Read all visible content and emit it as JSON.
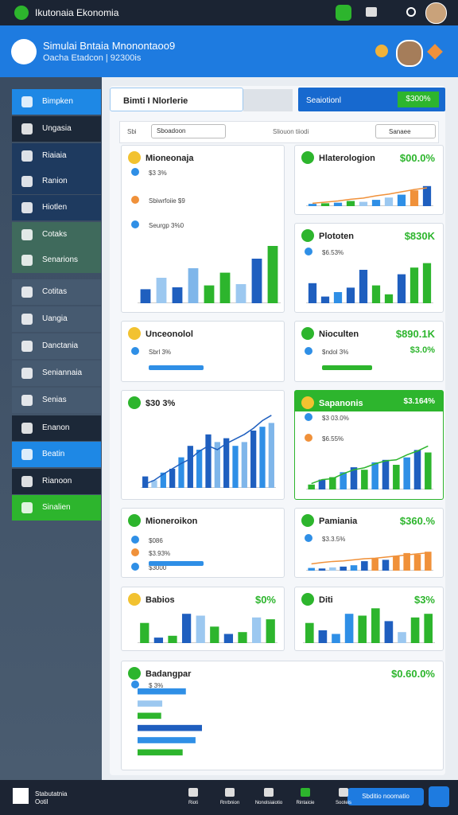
{
  "app": {
    "title": "Ikutonaia Ekonomia"
  },
  "header": {
    "title": "Simulai Bntaia  Mnonontaoo9",
    "subtitle": "Oacha  Etadcon  |  92300is"
  },
  "sidebar": {
    "items": [
      "Bimpken",
      "Ungasia",
      "Riaiaia",
      "Ranion",
      "Hiotlen",
      "Cotaks",
      "Senarions",
      "Cotitas",
      "Uangia",
      "Danctania",
      "Seniannaia",
      "Senias",
      "Enanon",
      "Beatin",
      "Rianoon",
      "Sinalien"
    ],
    "footer": {
      "title": "Stabutatnia",
      "subtitle": "Ootil"
    }
  },
  "toolbar": {
    "tab": "Bimti I Nlorlerie",
    "action": "Seaiotionl",
    "action_value": "$300%"
  },
  "filters": {
    "label": "Sbi",
    "select": "Sboadoon",
    "link": "Sliouon tiiodi",
    "button": "Sanaee"
  },
  "cards": [
    {
      "title": "Mioneonaja",
      "lines": [
        "$3 3%",
        "Sbiwrfoiie  $9",
        "Seurgp  3%0"
      ],
      "chart": {
        "type": "bar",
        "ylim": [
          0,
          100
        ],
        "values": [
          22,
          40,
          25,
          55,
          28,
          48,
          30,
          70,
          90
        ],
        "colors": [
          "#1f5fbf",
          "#9cc8f0",
          "#1f5fbf",
          "#7fb6ea",
          "#2db52d",
          "#2db52d",
          "#9cc8f0",
          "#1f5fbf",
          "#2db52d"
        ]
      }
    },
    {
      "title": "Hlaterologion",
      "value": "$00.0%",
      "chart": {
        "type": "bar",
        "ylim": [
          0,
          100
        ],
        "values": [
          8,
          10,
          12,
          18,
          15,
          22,
          30,
          40,
          55,
          70
        ],
        "colors": [
          "#2f8fe6",
          "#2db52d",
          "#2f8fe6",
          "#2db52d",
          "#9cc8f0",
          "#2f8fe6",
          "#9cc8f0",
          "#2f8fe6",
          "#f0913a",
          "#1f5fbf"
        ],
        "line": [
          10,
          14,
          18,
          24,
          28,
          36,
          42,
          50,
          58,
          64
        ],
        "line_color": "#f0913a"
      }
    },
    {
      "title": "Plototen",
      "value": "$830K",
      "lines": [
        "$6.53%"
      ],
      "chart": {
        "type": "bar",
        "ylim": [
          0,
          100
        ],
        "values": [
          45,
          15,
          25,
          35,
          75,
          40,
          20,
          65,
          80,
          90
        ],
        "colors": [
          "#1f5fbf",
          "#1f5fbf",
          "#2f8fe6",
          "#1f5fbf",
          "#1f5fbf",
          "#2db52d",
          "#2db52d",
          "#1f5fbf",
          "#2db52d",
          "#2db52d"
        ]
      }
    },
    {
      "title": "Unceonolol",
      "lines": [
        "Sbrl 3%"
      ]
    },
    {
      "title": "Nioculten",
      "value": "$890.1K",
      "subvalue": "$3.0%",
      "lines": [
        "$ndol 3%"
      ]
    },
    {
      "title": "$30 3%",
      "chart": {
        "type": "bar",
        "ylim": [
          0,
          100
        ],
        "values": [
          15,
          10,
          20,
          25,
          40,
          55,
          50,
          70,
          60,
          65,
          55,
          60,
          75,
          80,
          85
        ],
        "colors": [
          "#1f5fbf",
          "#9cc8f0",
          "#2f8fe6",
          "#1f5fbf",
          "#2f8fe6",
          "#1f5fbf",
          "#2f8fe6",
          "#1f5fbf",
          "#7fb6ea",
          "#1f5fbf",
          "#2f8fe6",
          "#7fb6ea",
          "#1f5fbf",
          "#2f8fe6",
          "#7fb6ea"
        ],
        "line": [
          5,
          10,
          18,
          25,
          32,
          38,
          48,
          55,
          50,
          58,
          64,
          70,
          78,
          88,
          95
        ],
        "line_color": "#1f5fbf"
      }
    },
    {
      "title": "Sapanonis",
      "value": "$3.164%",
      "lines": [
        "$3 03.0%",
        "$6.55%"
      ],
      "chart": {
        "type": "bar",
        "ylim": [
          0,
          100
        ],
        "values": [
          10,
          20,
          25,
          35,
          45,
          40,
          55,
          60,
          50,
          65,
          80,
          75
        ],
        "colors": [
          "#2db52d",
          "#1f5fbf",
          "#2db52d",
          "#2f8fe6",
          "#1f5fbf",
          "#2db52d",
          "#2f8fe6",
          "#1f5fbf",
          "#2db52d",
          "#2f8fe6",
          "#1f5fbf",
          "#2db52d"
        ],
        "line": [
          12,
          20,
          22,
          32,
          40,
          44,
          52,
          58,
          60,
          70,
          78,
          88
        ],
        "line_color": "#2db52d"
      }
    },
    {
      "title": "Mioneroikon",
      "lines": [
        "$086",
        "$3.93%",
        "$3000"
      ]
    },
    {
      "title": "Pamiania",
      "value": "$360.%",
      "lines": [
        "$3.3.5%"
      ],
      "chart": {
        "type": "bar",
        "ylim": [
          0,
          100
        ],
        "values": [
          10,
          8,
          12,
          15,
          20,
          35,
          45,
          40,
          55,
          65,
          60,
          70
        ],
        "colors": [
          "#2f8fe6",
          "#1f5fbf",
          "#9cc8f0",
          "#1f5fbf",
          "#2f8fe6",
          "#1f5fbf",
          "#f0913a",
          "#1f5fbf",
          "#f0913a",
          "#f0913a",
          "#f0913a",
          "#f0913a"
        ],
        "line": [
          25,
          30,
          34,
          36,
          40,
          44,
          46,
          50,
          54,
          58,
          62,
          66
        ],
        "line_color": "#f0913a"
      }
    },
    {
      "title": "Babios",
      "value": "$0%",
      "chart": {
        "type": "bar",
        "ylim": [
          0,
          100
        ],
        "values": [
          55,
          15,
          20,
          80,
          75,
          45,
          25,
          30,
          70,
          65
        ],
        "colors": [
          "#2db52d",
          "#1f5fbf",
          "#2db52d",
          "#1f5fbf",
          "#9cc8f0",
          "#2db52d",
          "#1f5fbf",
          "#2db52d",
          "#9cc8f0",
          "#2db52d"
        ]
      }
    },
    {
      "title": "Diti",
      "value": "$3%",
      "chart": {
        "type": "bar",
        "ylim": [
          0,
          100
        ],
        "values": [
          55,
          35,
          25,
          80,
          75,
          95,
          60,
          30,
          70,
          80
        ],
        "colors": [
          "#2db52d",
          "#1f5fbf",
          "#2f8fe6",
          "#2f8fe6",
          "#2db52d",
          "#2db52d",
          "#1f5fbf",
          "#9cc8f0",
          "#2db52d",
          "#2db52d"
        ]
      }
    },
    {
      "title": "Badangpar",
      "value": "$0.60.0%",
      "lines": [
        "$ 3%"
      ],
      "chart": {
        "type": "hbar",
        "ylim": [
          0,
          100
        ],
        "values": [
          45,
          23,
          22,
          60,
          54,
          42
        ],
        "colors": [
          "#2f8fe6",
          "#9cc8f0",
          "#2db52d",
          "#1f5fbf",
          "#2f8fe6",
          "#2db52d"
        ]
      }
    }
  ],
  "bottom_nav": {
    "items": [
      "Rioti",
      "Rnrbnion",
      "Nonolsiaiotio",
      "Rintaicie",
      "Sooteis"
    ],
    "button": "Sbditio noomatio"
  }
}
